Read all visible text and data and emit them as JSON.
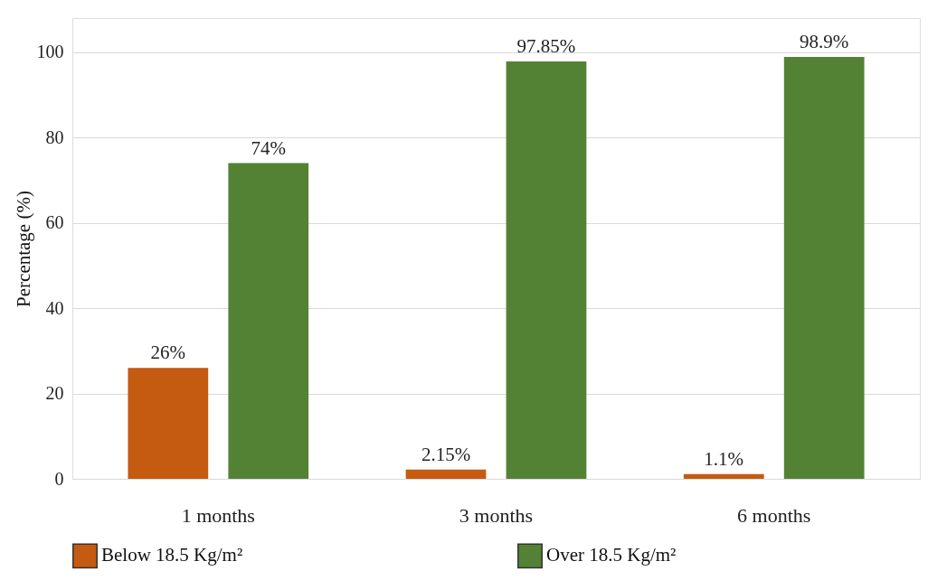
{
  "chart_data": {
    "type": "bar",
    "ylabel": "Percentage (%)",
    "categories": [
      "1 months",
      "3 months",
      "6 months"
    ],
    "series": [
      {
        "name": "Below 18.5 Kg/m²",
        "color": "#c55a11",
        "values": [
          26,
          2.15,
          1.1
        ],
        "value_labels": [
          "26%",
          "2.15%",
          "1.1%"
        ]
      },
      {
        "name": "Over 18.5 Kg/m²",
        "color": "#548235",
        "values": [
          74,
          97.85,
          98.9
        ],
        "value_labels": [
          "74%",
          "97.85%",
          "98.9%"
        ]
      }
    ],
    "ylim": [
      0,
      108
    ],
    "yticks": [
      0,
      20,
      40,
      60,
      80,
      100
    ],
    "grid": "y",
    "legend": "bottom"
  }
}
